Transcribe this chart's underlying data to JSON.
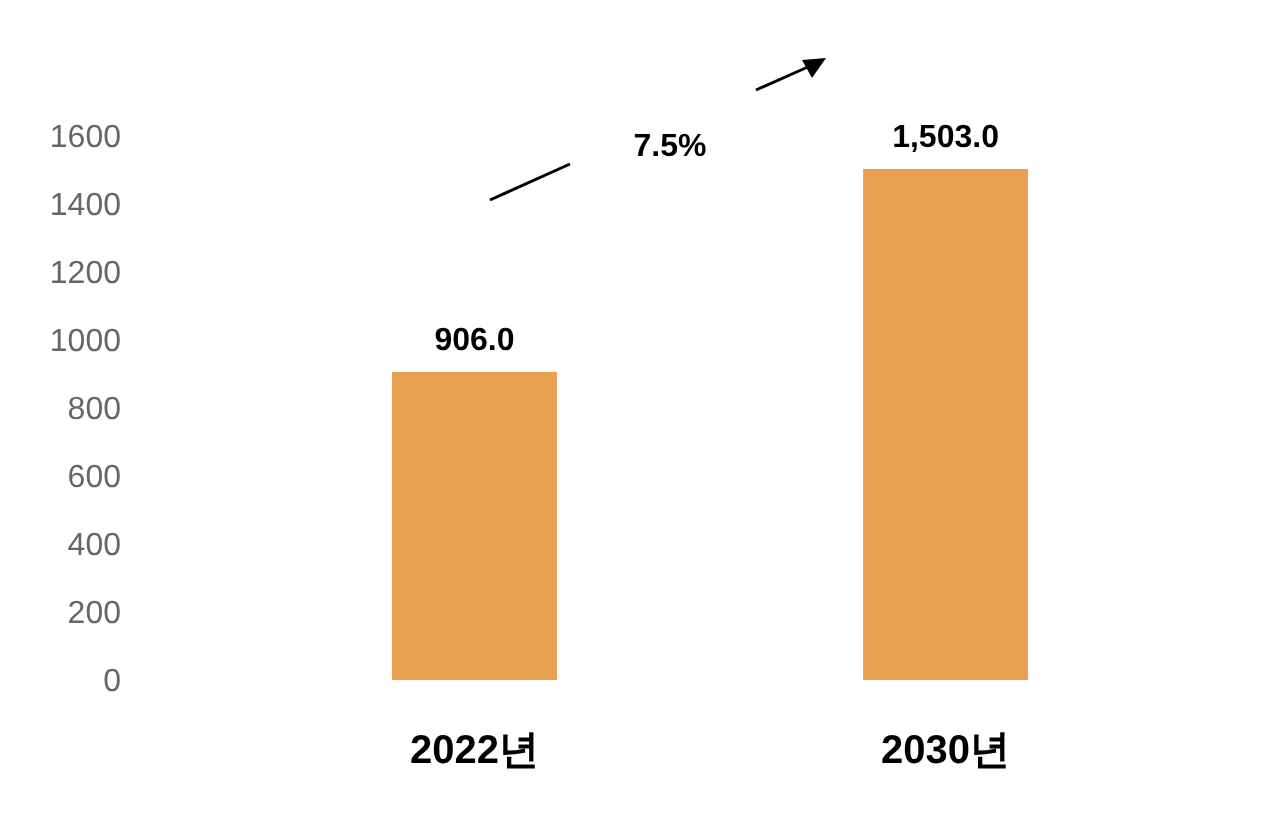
{
  "chart_data": {
    "type": "bar",
    "categories": [
      "2022년",
      "2030년"
    ],
    "values": [
      906.0,
      1503.0
    ],
    "color": "#e9a050",
    "ylim": [
      0,
      1600
    ],
    "yticks": [
      0,
      200,
      400,
      600,
      800,
      1000,
      1200,
      1400,
      1600
    ],
    "data_labels": true,
    "value_labels": [
      "906.0",
      "1,503.0"
    ],
    "grid": false,
    "annotations": [
      "7.5%"
    ]
  }
}
